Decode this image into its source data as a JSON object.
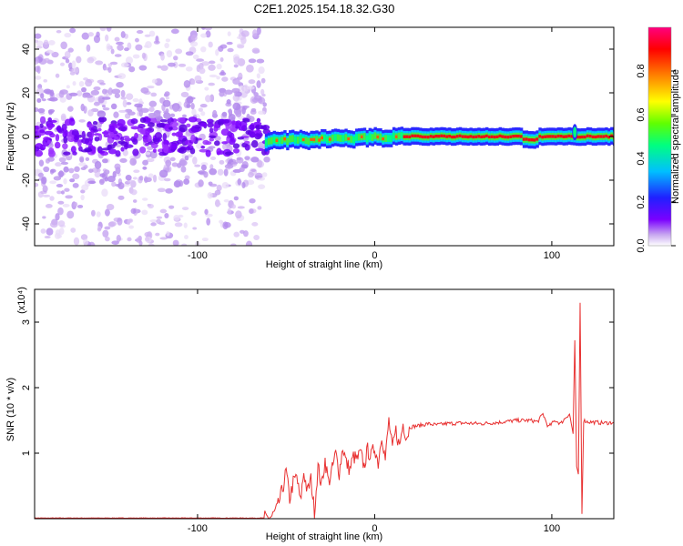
{
  "title": "C2E1.2025.154.18.32.G30",
  "charts": {
    "spectrogram": {
      "type": "heatmap",
      "xlabel": "Height of straight line (km)",
      "ylabel": "Frequency (Hz)",
      "xlim": [
        -192,
        135
      ],
      "ylim": [
        -50,
        50
      ],
      "xticks": [
        "-100",
        "0",
        "100"
      ],
      "yticks": [
        "40",
        "20",
        "0",
        "-20",
        "-40"
      ],
      "colorbar": {
        "label": "Normalized spectral amplitude",
        "range": [
          0,
          1
        ],
        "ticks": [
          "0.0",
          "0.2",
          "0.4",
          "0.6",
          "0.8"
        ],
        "colors": [
          "#ffffff",
          "#c8a8f0",
          "#7a00ff",
          "#2020ff",
          "#00c0ff",
          "#00ff80",
          "#60ff00",
          "#ffff00",
          "#ff8000",
          "#ff0000",
          "#ff0080"
        ]
      }
    },
    "snr": {
      "type": "line",
      "xlabel": "Height of straight line (km)",
      "ylabel": "SNR (10 * v/v)",
      "y_multiplier": "(x10⁴)",
      "xlim": [
        -192,
        135
      ],
      "ylim": [
        0,
        3.5
      ],
      "xticks": [
        "-100",
        "0",
        "100"
      ],
      "yticks": [
        "1",
        "2",
        "3"
      ],
      "color": "#e83030",
      "series": {
        "x": [
          -192,
          -80,
          -62,
          -58,
          -55,
          -52,
          -50,
          -48,
          -46,
          -44,
          -42,
          -40,
          -38,
          -36,
          -34,
          -32,
          -30,
          -28,
          -26,
          -24,
          -22,
          -20,
          -18,
          -16,
          -14,
          -12,
          -10,
          -8,
          -6,
          -4,
          -2,
          0,
          2,
          4,
          6,
          8,
          10,
          12,
          14,
          16,
          18,
          20,
          25,
          30,
          35,
          40,
          50,
          60,
          70,
          80,
          88,
          92,
          95,
          98,
          102,
          105,
          108,
          110,
          112,
          113,
          114,
          115,
          116,
          117,
          118,
          120,
          125,
          130,
          135
        ],
        "y": [
          0.01,
          0.01,
          0.01,
          0.03,
          0.15,
          0.45,
          0.72,
          0.3,
          0.55,
          0.65,
          0.25,
          0.72,
          0.4,
          0.6,
          0.1,
          0.8,
          0.5,
          0.9,
          0.55,
          0.75,
          1.0,
          0.7,
          1.1,
          0.85,
          0.75,
          0.95,
          0.9,
          1.0,
          0.8,
          1.05,
          0.95,
          1.1,
          0.85,
          1.3,
          0.9,
          1.5,
          1.05,
          1.35,
          1.1,
          1.45,
          1.25,
          1.4,
          1.42,
          1.45,
          1.43,
          1.45,
          1.46,
          1.45,
          1.47,
          1.5,
          1.5,
          1.48,
          1.6,
          1.4,
          1.5,
          1.45,
          1.55,
          1.6,
          1.3,
          2.7,
          0.8,
          0.65,
          3.3,
          0.1,
          1.5,
          1.48,
          1.47,
          1.46,
          1.47
        ]
      }
    }
  }
}
